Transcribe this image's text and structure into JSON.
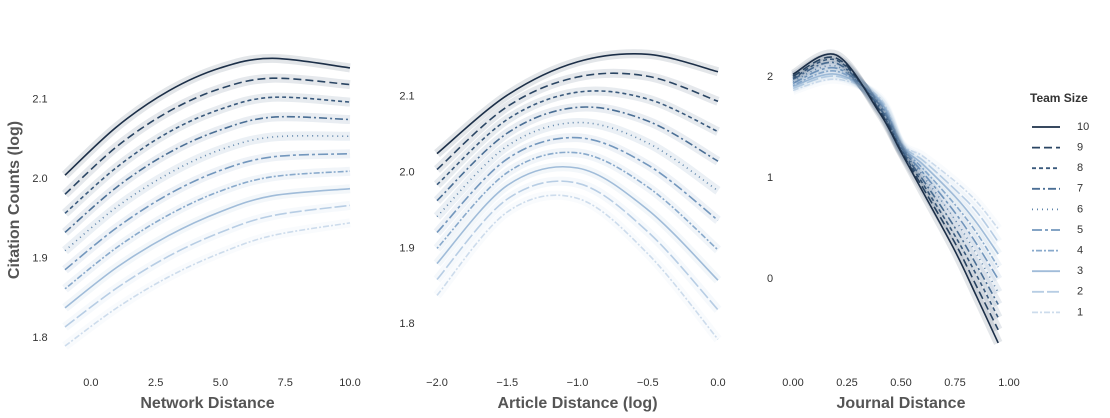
{
  "chart_data": [
    {
      "type": "line",
      "xlabel": "Network Distance",
      "ylabel": "Citation Counts (log)",
      "legend_title": "Team Size",
      "x": [
        -1,
        1,
        3,
        5,
        7,
        10
      ],
      "xlim": [
        -1,
        10
      ],
      "ylim": [
        1.785,
        2.16
      ],
      "xticks": [
        {
          "value": 0,
          "label": "0.0"
        },
        {
          "value": 2.5,
          "label": "2.5"
        },
        {
          "value": 5,
          "label": "5.0"
        },
        {
          "value": 7.5,
          "label": "7.5"
        },
        {
          "value": 10,
          "label": "10.0"
        }
      ],
      "yticks": [
        {
          "value": 1.8,
          "label": "1.8"
        },
        {
          "value": 1.9,
          "label": "1.9"
        },
        {
          "value": 2.0,
          "label": "2.0"
        },
        {
          "value": 2.1,
          "label": "2.1"
        }
      ],
      "series": [
        {
          "name": "10",
          "color": "#1c2f48",
          "dash": "none",
          "values": [
            2.005,
            2.066,
            2.111,
            2.14,
            2.152,
            2.14
          ]
        },
        {
          "name": "9",
          "color": "#2a4563",
          "dash": "8 4",
          "values": [
            1.981,
            2.041,
            2.085,
            2.114,
            2.127,
            2.119
          ]
        },
        {
          "name": "8",
          "color": "#3a5a7d",
          "dash": "4 3",
          "values": [
            1.957,
            2.015,
            2.059,
            2.088,
            2.103,
            2.097
          ]
        },
        {
          "name": "7",
          "color": "#4b6f95",
          "dash": "8 3 2 3",
          "values": [
            1.933,
            1.99,
            2.033,
            2.062,
            2.078,
            2.075
          ]
        },
        {
          "name": "6",
          "color": "#5e84aa",
          "dash": "1 4",
          "values": [
            1.91,
            1.965,
            2.007,
            2.037,
            2.053,
            2.054
          ]
        },
        {
          "name": "5",
          "color": "#7397bd",
          "dash": "10 3 3 3",
          "values": [
            1.886,
            1.939,
            1.981,
            2.011,
            2.028,
            2.032
          ]
        },
        {
          "name": "4",
          "color": "#89aacc",
          "dash": "2 2 6 2",
          "values": [
            1.862,
            1.914,
            1.955,
            1.985,
            2.003,
            2.01
          ]
        },
        {
          "name": "3",
          "color": "#a0bcd9",
          "dash": "none",
          "values": [
            1.838,
            1.889,
            1.929,
            1.959,
            1.979,
            1.988
          ]
        },
        {
          "name": "2",
          "color": "#b7cde4",
          "dash": "12 3",
          "values": [
            1.814,
            1.863,
            1.903,
            1.933,
            1.954,
            1.967
          ]
        },
        {
          "name": "1",
          "color": "#cddcec",
          "dash": "6 2 2 2",
          "values": [
            1.79,
            1.838,
            1.877,
            1.907,
            1.929,
            1.945
          ]
        }
      ]
    },
    {
      "type": "line",
      "xlabel": "Article Distance (log)",
      "x": [
        -2,
        -1.5,
        -1,
        -0.5,
        0
      ],
      "xlim": [
        -2,
        0
      ],
      "ylim": [
        1.766,
        2.159
      ],
      "xticks": [
        {
          "value": -2,
          "label": "−2.0"
        },
        {
          "value": -1.5,
          "label": "−1.5"
        },
        {
          "value": -1,
          "label": "−1.0"
        },
        {
          "value": -0.5,
          "label": "−0.5"
        },
        {
          "value": 0,
          "label": "0.0"
        }
      ],
      "yticks": [
        {
          "value": 1.8,
          "label": "1.8"
        },
        {
          "value": 1.9,
          "label": "1.9"
        },
        {
          "value": 2.0,
          "label": "2.0"
        },
        {
          "value": 2.1,
          "label": "2.1"
        }
      ],
      "series": [
        {
          "name": "10",
          "color": "#1c2f48",
          "dash": "none",
          "values": [
            2.025,
            2.102,
            2.146,
            2.156,
            2.133
          ]
        },
        {
          "name": "9",
          "color": "#2a4563",
          "dash": "8 4",
          "values": [
            2.004,
            2.087,
            2.126,
            2.127,
            2.094
          ]
        },
        {
          "name": "8",
          "color": "#3a5a7d",
          "dash": "4 3",
          "values": [
            1.984,
            2.07,
            2.106,
            2.097,
            2.054
          ]
        },
        {
          "name": "7",
          "color": "#4b6f95",
          "dash": "8 3 2 3",
          "values": [
            1.963,
            2.052,
            2.086,
            2.068,
            2.015
          ]
        },
        {
          "name": "6",
          "color": "#5e84aa",
          "dash": "1 4",
          "values": [
            1.942,
            2.035,
            2.066,
            2.039,
            1.976
          ]
        },
        {
          "name": "5",
          "color": "#7397bd",
          "dash": "10 3 3 3",
          "values": [
            1.921,
            2.018,
            2.046,
            2.01,
            1.937
          ]
        },
        {
          "name": "4",
          "color": "#89aacc",
          "dash": "2 2 6 2",
          "values": [
            1.9,
            2.0,
            2.026,
            1.981,
            1.898
          ]
        },
        {
          "name": "3",
          "color": "#a0bcd9",
          "dash": "none",
          "values": [
            1.88,
            1.983,
            2.006,
            1.951,
            1.858
          ]
        },
        {
          "name": "2",
          "color": "#b7cde4",
          "dash": "12 3",
          "values": [
            1.859,
            1.965,
            1.986,
            1.922,
            1.819
          ]
        },
        {
          "name": "1",
          "color": "#cddcec",
          "dash": "6 2 2 2",
          "values": [
            1.838,
            1.948,
            1.966,
            1.893,
            1.78
          ]
        }
      ]
    },
    {
      "type": "line",
      "xlabel": "Journal Distance",
      "x": [
        0,
        0.2,
        0.4,
        0.5,
        0.6,
        0.75,
        0.85,
        0.95
      ],
      "xlim": [
        0,
        1
      ],
      "ylim": [
        -0.7,
        2.25
      ],
      "xticks": [
        {
          "value": 0,
          "label": "0.00"
        },
        {
          "value": 0.25,
          "label": "0.25"
        },
        {
          "value": 0.5,
          "label": "0.50"
        },
        {
          "value": 0.75,
          "label": "0.75"
        },
        {
          "value": 1,
          "label": "1.00"
        }
      ],
      "yticks": [
        0,
        1,
        2
      ],
      "series": [
        {
          "name": "10",
          "color": "#1c2f48",
          "dash": "none",
          "values": [
            2.03,
            2.22,
            1.65,
            1.26,
            0.87,
            0.28,
            -0.17,
            -0.63
          ]
        },
        {
          "name": "9",
          "color": "#2a4563",
          "dash": "8 4",
          "values": [
            2.01,
            2.19,
            1.67,
            1.27,
            0.91,
            0.36,
            -0.07,
            -0.5
          ]
        },
        {
          "name": "8",
          "color": "#3a5a7d",
          "dash": "4 3",
          "values": [
            1.99,
            2.17,
            1.68,
            1.28,
            0.95,
            0.43,
            0.04,
            -0.38
          ]
        },
        {
          "name": "7",
          "color": "#4b6f95",
          "dash": "8 3 2 3",
          "values": [
            1.98,
            2.14,
            1.7,
            1.29,
            0.99,
            0.51,
            0.14,
            -0.25
          ]
        },
        {
          "name": "6",
          "color": "#5e84aa",
          "dash": "1 4",
          "values": [
            1.96,
            2.11,
            1.72,
            1.3,
            1.03,
            0.59,
            0.25,
            -0.13
          ]
        },
        {
          "name": "5",
          "color": "#7397bd",
          "dash": "10 3 3 3",
          "values": [
            1.94,
            2.09,
            1.73,
            1.31,
            1.06,
            0.66,
            0.35,
            0.0
          ]
        },
        {
          "name": "4",
          "color": "#89aacc",
          "dash": "2 2 6 2",
          "values": [
            1.92,
            2.06,
            1.75,
            1.32,
            1.1,
            0.74,
            0.46,
            0.12
          ]
        },
        {
          "name": "3",
          "color": "#a0bcd9",
          "dash": "none",
          "values": [
            1.91,
            2.03,
            1.77,
            1.33,
            1.14,
            0.82,
            0.56,
            0.25
          ]
        },
        {
          "name": "2",
          "color": "#b7cde4",
          "dash": "12 3",
          "values": [
            1.89,
            2.01,
            1.78,
            1.34,
            1.18,
            0.89,
            0.67,
            0.37
          ]
        },
        {
          "name": "1",
          "color": "#cddcec",
          "dash": "6 2 2 2",
          "values": [
            1.87,
            1.98,
            1.8,
            1.35,
            1.22,
            0.97,
            0.77,
            0.5
          ]
        }
      ]
    }
  ]
}
